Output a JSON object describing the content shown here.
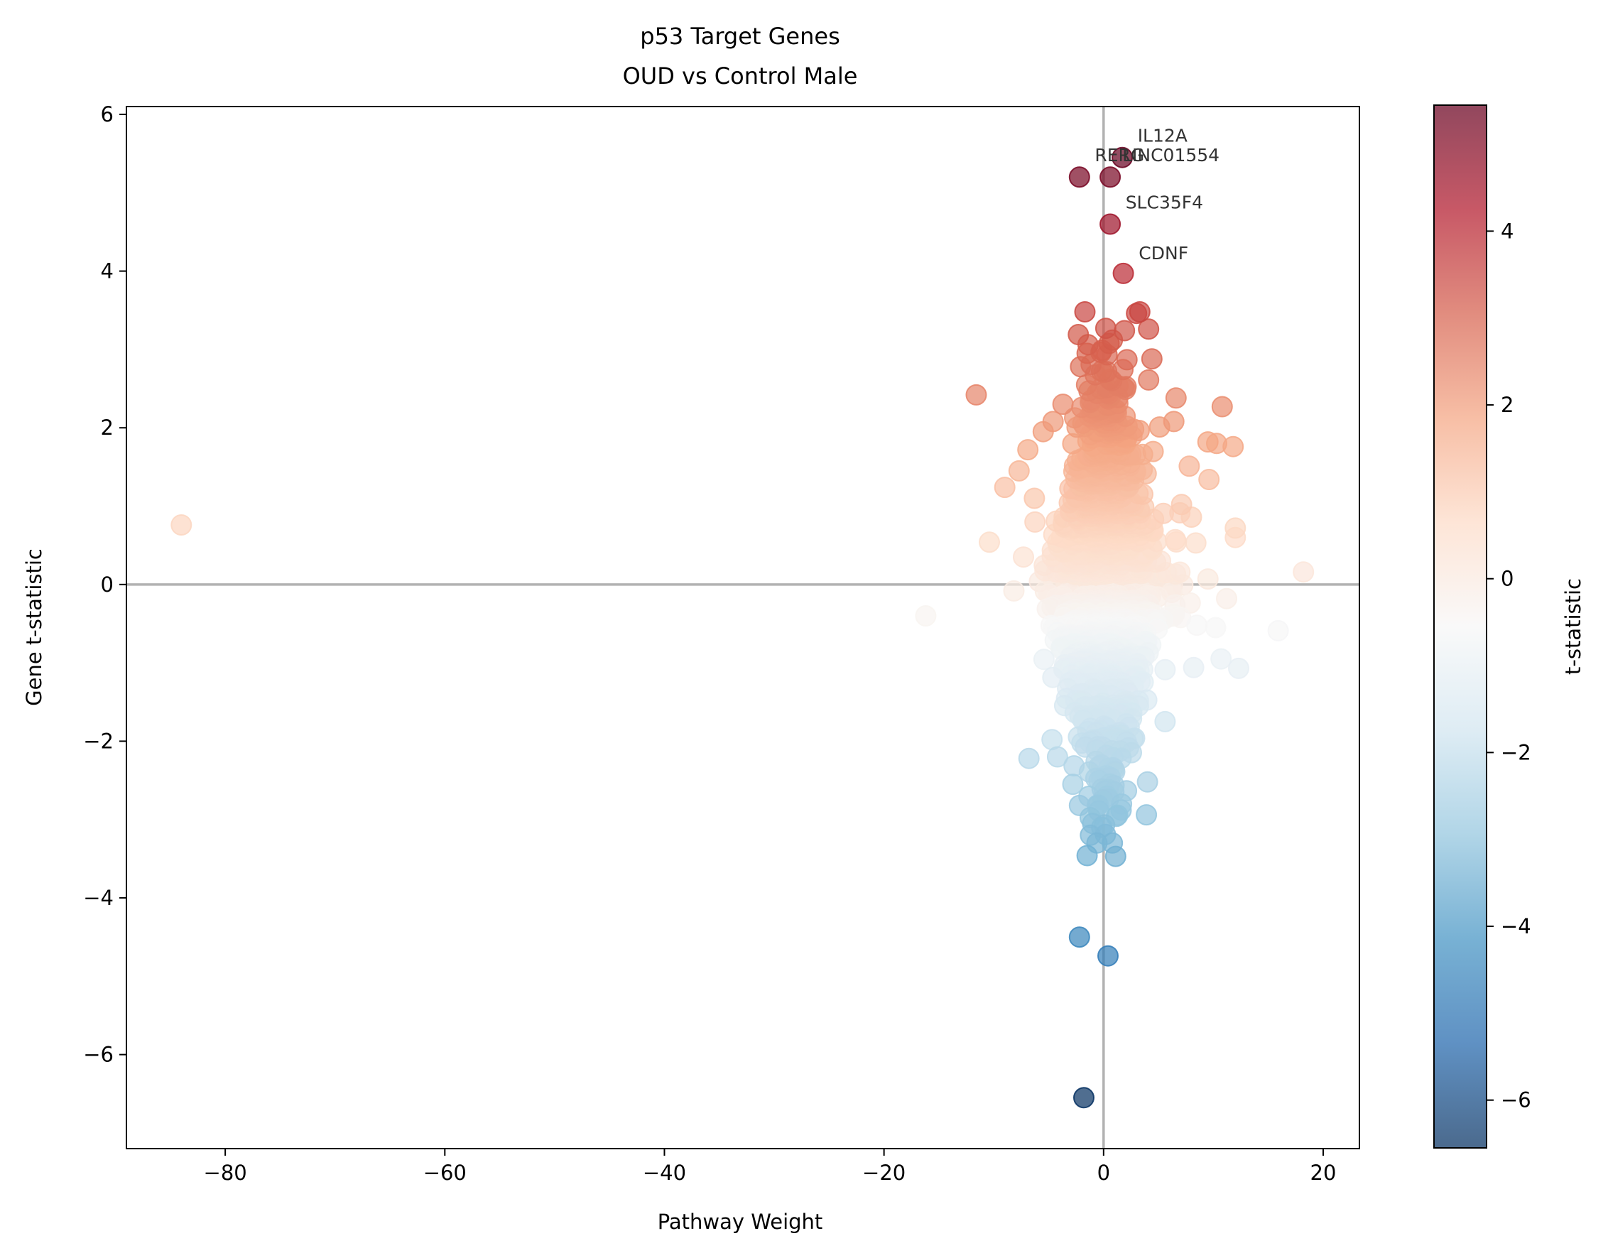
{
  "chart_data": {
    "type": "scatter",
    "title": "p53 Target Genes",
    "subtitle": "OUD vs Control Male",
    "xlabel": "Pathway Weight",
    "ylabel": "Gene t-statistic",
    "xlim": [
      -89,
      23.3
    ],
    "ylim": [
      -7.2,
      6.1
    ],
    "xticks": [
      -80,
      -60,
      -40,
      -20,
      0,
      20
    ],
    "xtick_labels": [
      "−80",
      "−60",
      "−40",
      "−20",
      "0",
      "20"
    ],
    "yticks": [
      -6,
      -4,
      -2,
      0,
      2,
      4,
      6
    ],
    "ytick_labels": [
      "−6",
      "−4",
      "−2",
      "0",
      "2",
      "4",
      "6"
    ],
    "reference_lines": {
      "x": 0,
      "y": 0
    },
    "grid": false,
    "colormap": "RdBu_r",
    "marker_alpha": 0.7,
    "colorbar": {
      "label": "t-statistic",
      "range": [
        -6.55,
        5.45
      ],
      "ticks": [
        -6,
        -4,
        -2,
        0,
        2,
        4
      ],
      "tick_labels": [
        "−6",
        "−4",
        "−2",
        "0",
        "2",
        "4"
      ]
    },
    "annotations": [
      {
        "text": "IL12A",
        "x": 3.1,
        "y": 5.65
      },
      {
        "text": "RERG",
        "x": -0.8,
        "y": 5.4
      },
      {
        "text": "LINC01554",
        "x": 1.7,
        "y": 5.4
      },
      {
        "text": "SLC35F4",
        "x": 2.0,
        "y": 4.8
      },
      {
        "text": "CDNF",
        "x": 3.2,
        "y": 4.15
      }
    ],
    "points": [
      {
        "label": "IL12A",
        "x": 1.7,
        "y": 5.45
      },
      {
        "label": "RERG",
        "x": -2.2,
        "y": 5.2
      },
      {
        "label": "LINC01554",
        "x": 0.6,
        "y": 5.2
      },
      {
        "label": "SLC35F4",
        "x": 0.6,
        "y": 4.6
      },
      {
        "label": "CDNF",
        "x": 1.8,
        "y": 3.97
      },
      {
        "x": -84,
        "y": 0.76
      },
      {
        "x": -16.2,
        "y": -0.4
      },
      {
        "x": -11.6,
        "y": 2.42
      },
      {
        "x": -10.4,
        "y": 0.54
      },
      {
        "x": -9.0,
        "y": 1.24
      },
      {
        "x": -7.3,
        "y": 0.35
      },
      {
        "x": -6.8,
        "y": -2.22
      },
      {
        "x": 18.2,
        "y": 0.16
      },
      {
        "x": 15.9,
        "y": -0.59
      },
      {
        "x": 12.3,
        "y": -1.07
      },
      {
        "x": 11.8,
        "y": 1.76
      },
      {
        "x": 12.0,
        "y": 0.72
      },
      {
        "x": 12.0,
        "y": 0.6
      },
      {
        "x": 10.8,
        "y": 2.27
      },
      {
        "x": 10.3,
        "y": 1.8
      },
      {
        "x": 9.5,
        "y": 1.82
      },
      {
        "x": 9.6,
        "y": 1.34
      },
      {
        "x": 8.4,
        "y": 0.53
      },
      {
        "x": 9.5,
        "y": 0.07
      },
      {
        "x": 10.7,
        "y": -0.95
      },
      {
        "x": 8.2,
        "y": -1.06
      },
      {
        "x": 6.6,
        "y": 2.38
      },
      {
        "x": 6.4,
        "y": 2.08
      },
      {
        "x": 5.1,
        "y": 2.01
      },
      {
        "x": 7.8,
        "y": 1.51
      },
      {
        "x": 5.6,
        "y": -1.75
      },
      {
        "x": -1.7,
        "y": 3.48
      },
      {
        "x": 3.0,
        "y": 3.46
      },
      {
        "x": 3.3,
        "y": 3.48
      },
      {
        "x": 4.1,
        "y": 3.26
      },
      {
        "x": 0.2,
        "y": 3.27
      },
      {
        "x": 0.8,
        "y": 3.12
      },
      {
        "x": 1.9,
        "y": 3.24
      },
      {
        "x": -2.3,
        "y": 3.19
      },
      {
        "x": 4.4,
        "y": 2.88
      },
      {
        "x": 4.1,
        "y": 2.61
      },
      {
        "x": -1.5,
        "y": 2.95
      },
      {
        "x": -2.1,
        "y": 2.78
      },
      {
        "x": -4.6,
        "y": 2.08
      },
      {
        "x": -5.5,
        "y": 1.95
      },
      {
        "x": -3.7,
        "y": 2.3
      },
      {
        "x": -6.9,
        "y": 1.72
      },
      {
        "x": -7.7,
        "y": 1.45
      },
      {
        "x": -6.3,
        "y": 1.1
      },
      {
        "x": 7.1,
        "y": 1.02
      },
      {
        "x": 8.0,
        "y": 0.86
      },
      {
        "x": 6.5,
        "y": -0.26
      },
      {
        "x": 11.2,
        "y": -0.18
      },
      {
        "x": 10.2,
        "y": -0.55
      },
      {
        "x": 8.5,
        "y": -0.52
      },
      {
        "x": -2.2,
        "y": -4.5
      },
      {
        "x": 0.4,
        "y": -4.74
      },
      {
        "x": -1.8,
        "y": -6.55
      },
      {
        "x": -1.5,
        "y": -3.46
      },
      {
        "x": 0.8,
        "y": -3.3
      },
      {
        "x": 1.1,
        "y": -3.47
      },
      {
        "x": -0.6,
        "y": -3.3
      },
      {
        "x": -1.2,
        "y": -3.2
      },
      {
        "x": 3.9,
        "y": -2.94
      },
      {
        "x": 1.6,
        "y": -2.88
      },
      {
        "x": -2.8,
        "y": -2.55
      },
      {
        "x": -2.2,
        "y": -2.82
      },
      {
        "x": -1.0,
        "y": -3.05
      },
      {
        "x": 4.0,
        "y": -2.52
      },
      {
        "x": -4.2,
        "y": -2.2
      },
      {
        "x": -4.7,
        "y": -1.98
      }
    ]
  }
}
